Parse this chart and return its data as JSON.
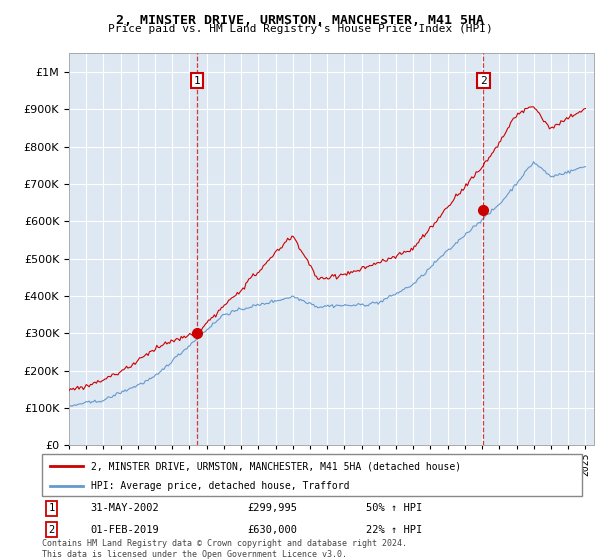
{
  "title": "2, MINSTER DRIVE, URMSTON, MANCHESTER, M41 5HA",
  "subtitle": "Price paid vs. HM Land Registry's House Price Index (HPI)",
  "legend_line1": "2, MINSTER DRIVE, URMSTON, MANCHESTER, M41 5HA (detached house)",
  "legend_line2": "HPI: Average price, detached house, Trafford",
  "annotation1_date": "31-MAY-2002",
  "annotation1_price": "£299,995",
  "annotation1_hpi": "50% ↑ HPI",
  "annotation2_date": "01-FEB-2019",
  "annotation2_price": "£630,000",
  "annotation2_hpi": "22% ↑ HPI",
  "footnote": "Contains HM Land Registry data © Crown copyright and database right 2024.\nThis data is licensed under the Open Government Licence v3.0.",
  "sale1_year": 2002.42,
  "sale1_value": 299995,
  "sale2_year": 2019.08,
  "sale2_value": 630000,
  "red_color": "#cc0000",
  "blue_color": "#6699cc",
  "fig_bg": "#ffffff",
  "plot_bg": "#dde8f3",
  "grid_color": "#ffffff",
  "ylim": [
    0,
    1050000
  ],
  "xlim_start": 1995.0,
  "xlim_end": 2025.5,
  "hpi_seed": 42,
  "red_seed": 123
}
